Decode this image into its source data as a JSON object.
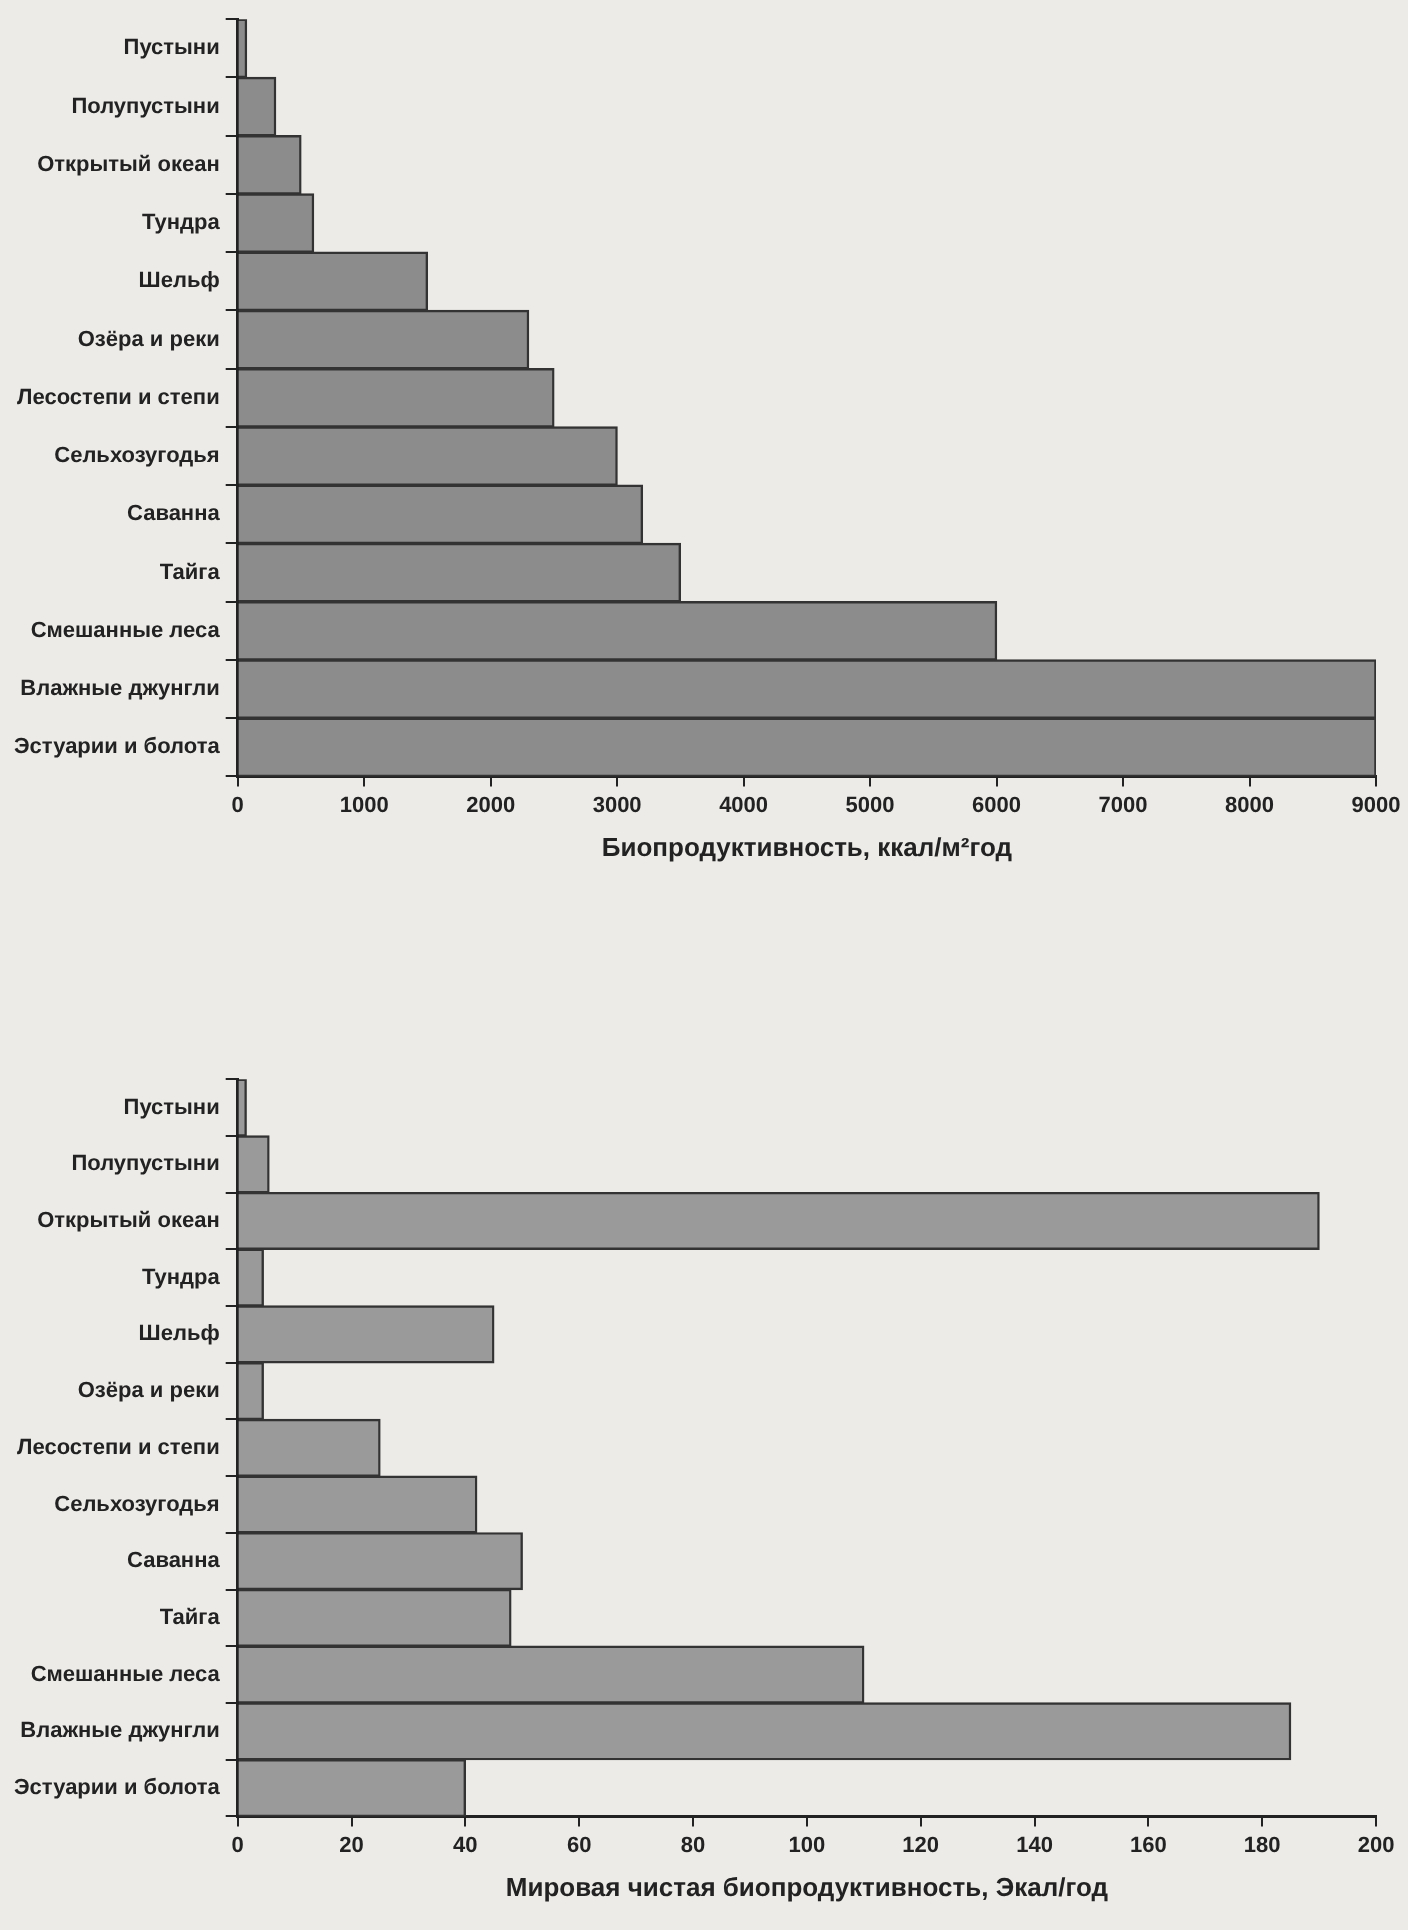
{
  "chart_data": [
    {
      "type": "bar",
      "orientation": "horizontal",
      "categories": [
        "Пустыни",
        "Полупустыни",
        "Открытый океан",
        "Тундра",
        "Шельф",
        "Озёра и реки",
        "Лесостепи и степи",
        "Сельхозугодья",
        "Саванна",
        "Тайга",
        "Смешанные леса",
        "Влажные джунгли",
        "Эстуарии и болота"
      ],
      "values": [
        70,
        300,
        500,
        600,
        1500,
        2300,
        2500,
        3000,
        3200,
        3500,
        6000,
        9000,
        9000
      ],
      "color": "#8c8c8c",
      "xlabel": "Биопродуктивность, ккал/м²год",
      "xlim": [
        0,
        9000
      ],
      "xticks": [
        0,
        1000,
        2000,
        3000,
        4000,
        5000,
        6000,
        7000,
        8000,
        9000
      ],
      "grid": false
    },
    {
      "type": "bar",
      "orientation": "horizontal",
      "categories": [
        "Пустыни",
        "Полупустыни",
        "Открытый океан",
        "Тундра",
        "Шельф",
        "Озёра и реки",
        "Лесостепи и степи",
        "Сельхозугодья",
        "Саванна",
        "Тайга",
        "Смешанные леса",
        "Влажные джунгли",
        "Эстуарии и болота"
      ],
      "values": [
        1.5,
        5.5,
        190,
        4.5,
        45,
        4.5,
        25,
        42,
        50,
        48,
        110,
        185,
        40
      ],
      "color": "#9a9a9a",
      "xlabel": "Мировая чистая биопродуктивность, Экал/год",
      "xlim": [
        0,
        200
      ],
      "xticks": [
        0,
        20,
        40,
        60,
        80,
        100,
        120,
        140,
        160,
        180,
        200
      ],
      "grid": false
    }
  ]
}
